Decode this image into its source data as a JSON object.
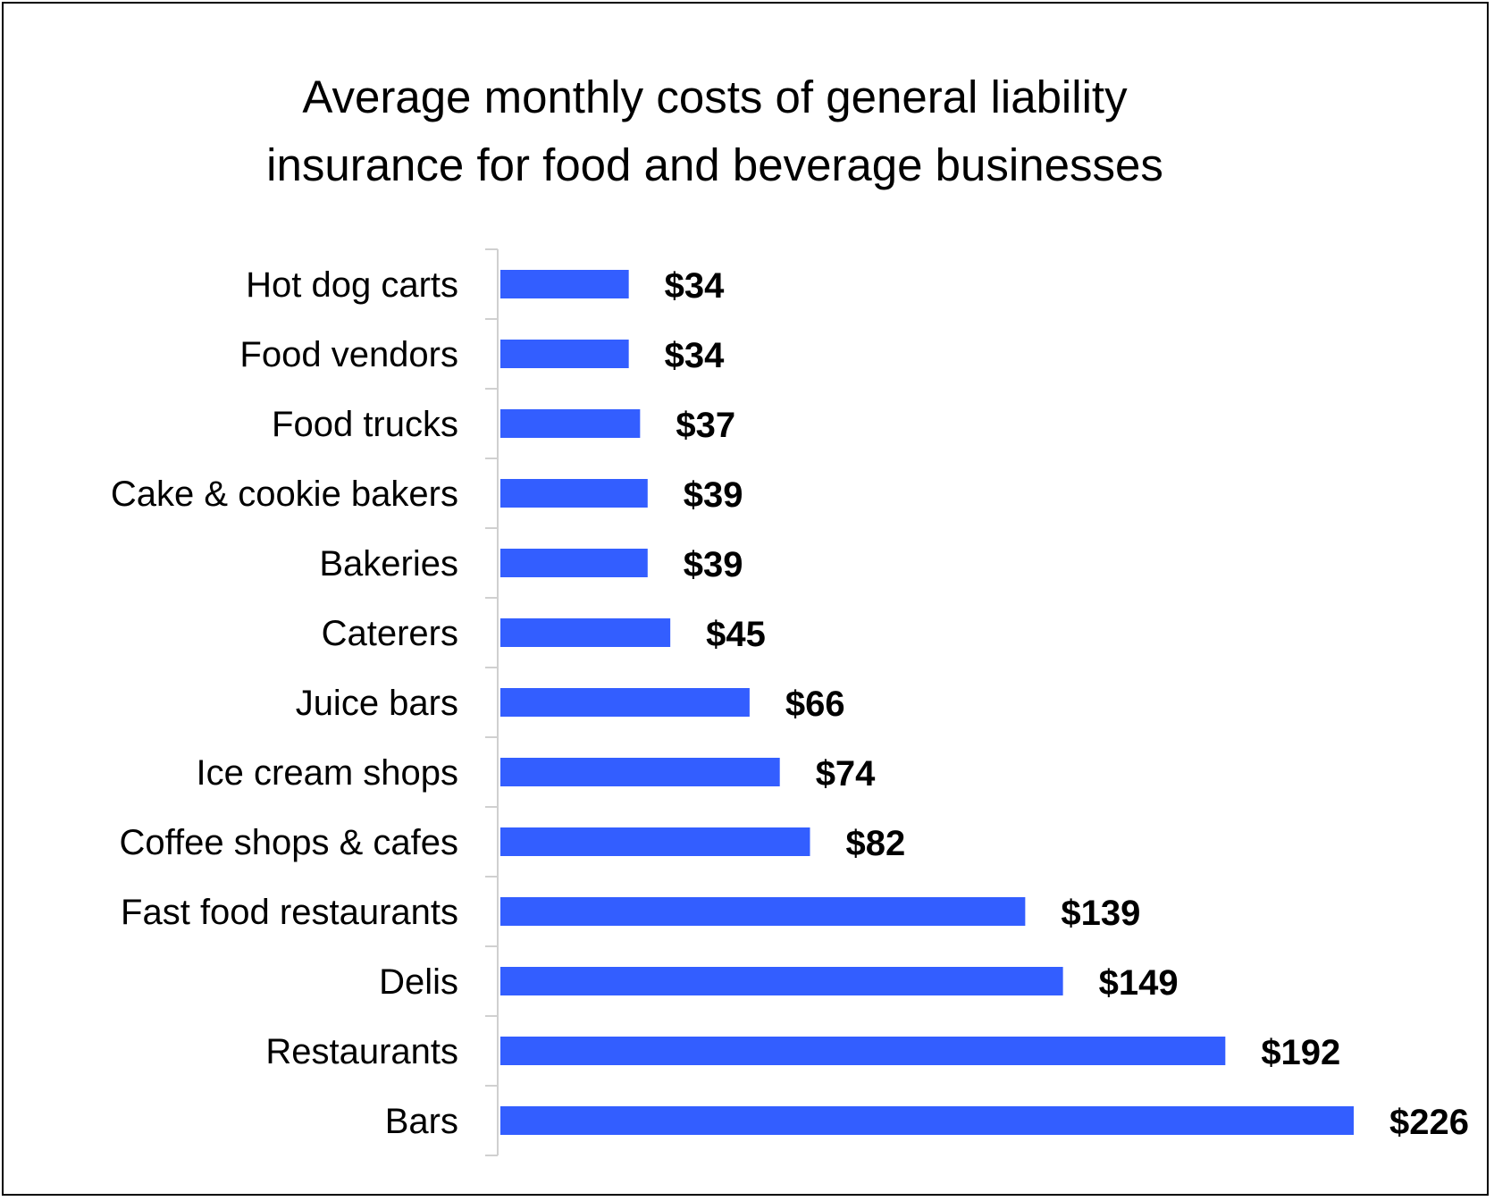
{
  "chart_data": {
    "type": "bar",
    "orientation": "horizontal",
    "title": "Average monthly costs of general liability insurance for food and beverage businesses",
    "title_lines": [
      "Average monthly costs of general liability",
      "insurance for food and beverage businesses"
    ],
    "xlabel": "",
    "ylabel": "",
    "xlim": [
      0,
      226
    ],
    "grid": false,
    "legend": "none",
    "bar_color": "#335EFF",
    "categories": [
      "Hot dog carts",
      "Food vendors",
      "Food trucks",
      "Cake & cookie bakers",
      "Bakeries",
      "Caterers",
      "Juice bars",
      "Ice cream shops",
      "Coffee shops & cafes",
      "Fast food restaurants",
      "Delis",
      "Restaurants",
      "Bars"
    ],
    "values": [
      34,
      34,
      37,
      39,
      39,
      45,
      66,
      74,
      82,
      139,
      149,
      192,
      226
    ],
    "data_labels": [
      "$34",
      "$34",
      "$37",
      "$39",
      "$39",
      "$45",
      "$66",
      "$74",
      "$82",
      "$139",
      "$149",
      "$192",
      "$226"
    ]
  }
}
